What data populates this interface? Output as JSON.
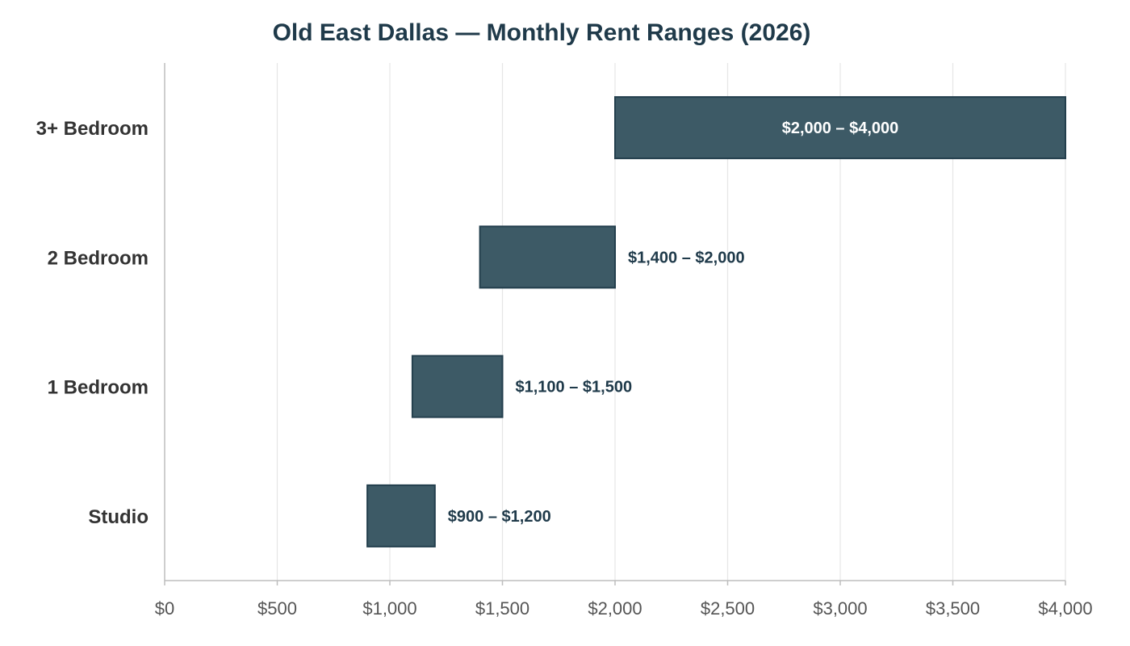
{
  "chart_data": {
    "type": "bar",
    "orientation": "horizontal",
    "bar_style": "floating-range",
    "title": "Old East Dallas — Monthly Rent Ranges (2026)",
    "xlabel": "",
    "ylabel": "",
    "xlim": [
      0,
      4000
    ],
    "x_ticks": [
      0,
      500,
      1000,
      1500,
      2000,
      2500,
      3000,
      3500,
      4000
    ],
    "x_tick_labels": [
      "$0",
      "$500",
      "$1,000",
      "$1,500",
      "$2,000",
      "$2,500",
      "$3,000",
      "$3,500",
      "$4,000"
    ],
    "categories": [
      "3+ Bedroom",
      "2 Bedroom",
      "1 Bedroom",
      "Studio"
    ],
    "ranges": [
      {
        "low": 2000,
        "high": 4000,
        "label": "$2,000 – $4,000",
        "label_position": "inside"
      },
      {
        "low": 1400,
        "high": 2000,
        "label": "$1,400 – $2,000",
        "label_position": "outside"
      },
      {
        "low": 1100,
        "high": 1500,
        "label": "$1,100 – $1,500",
        "label_position": "outside"
      },
      {
        "low": 900,
        "high": 1200,
        "label": "$900 – $1,200",
        "label_position": "outside"
      }
    ],
    "grid": true,
    "legend": "none",
    "colors": {
      "bar_fill": "#3d5a66",
      "bar_stroke": "#233f4d",
      "title": "#1f3a4a",
      "label_outside": "#1f3a4a",
      "label_inside": "#ffffff"
    }
  }
}
